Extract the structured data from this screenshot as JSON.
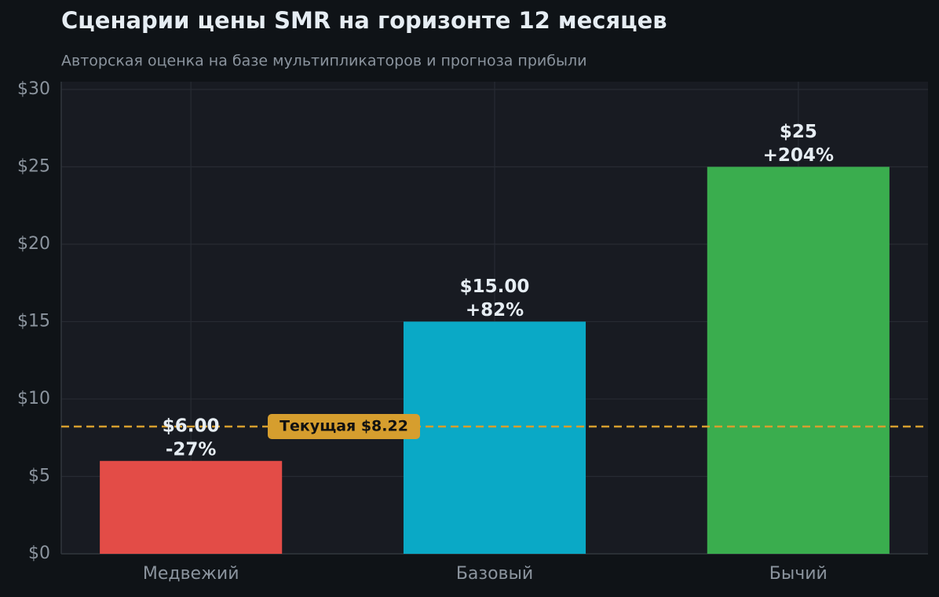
{
  "chart_data": {
    "type": "bar",
    "title": "Сценарии цены SMR на горизонте 12 месяцев",
    "subtitle": "Авторская оценка на базе мультипликаторов и прогноза прибыли",
    "categories": [
      "Медвежий",
      "Базовый",
      "Бычий"
    ],
    "values": [
      6,
      15,
      25
    ],
    "value_labels": [
      "$6.00",
      "$15.00",
      "$25"
    ],
    "change_labels": [
      "-27%",
      "+82%",
      "+204%"
    ],
    "colors": [
      "#e34c47",
      "#0aa9c6",
      "#3aad4e"
    ],
    "ylim": [
      0,
      30.5
    ],
    "yticks": [
      {
        "value": 0,
        "label": "$0"
      },
      {
        "value": 5,
        "label": "$5"
      },
      {
        "value": 10,
        "label": "$10"
      },
      {
        "value": 15,
        "label": "$15"
      },
      {
        "value": 20,
        "label": "$20"
      },
      {
        "value": 25,
        "label": "$25"
      },
      {
        "value": 30,
        "label": "$30"
      }
    ],
    "grid": true,
    "reference": {
      "value": 8.22,
      "label": "Текущая $8.22",
      "color": "#d69e2e"
    }
  }
}
